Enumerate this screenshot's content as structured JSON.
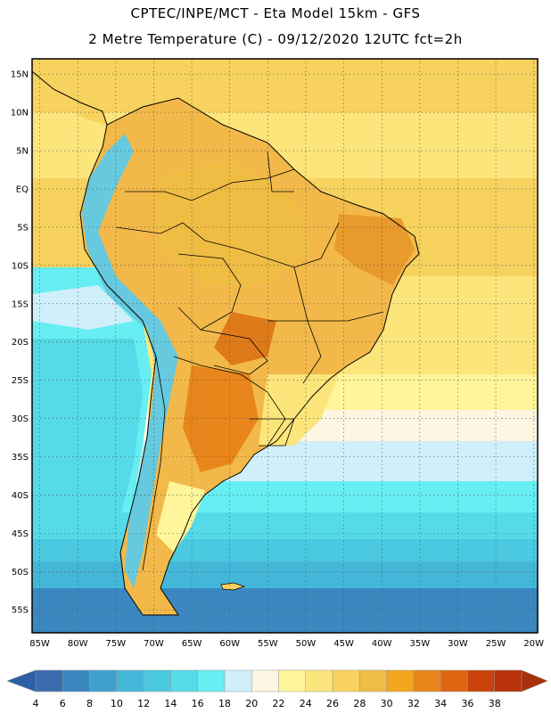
{
  "header": {
    "line1": "CPTEC/INPE/MCT -  Eta Model 15km - GFS",
    "line2": "2 Metre Temperature (C) - 09/12/2020 12UTC fct=2h"
  },
  "axes": {
    "lat_labels": [
      "15N",
      "10N",
      "5N",
      "EQ",
      "5S",
      "10S",
      "15S",
      "20S",
      "25S",
      "30S",
      "35S",
      "40S",
      "45S",
      "50S",
      "55S"
    ],
    "lat_values": [
      15,
      10,
      5,
      0,
      -5,
      -10,
      -15,
      -20,
      -25,
      -30,
      -35,
      -40,
      -45,
      -50,
      -55
    ],
    "lon_labels": [
      "85W",
      "80W",
      "75W",
      "70W",
      "65W",
      "60W",
      "55W",
      "50W",
      "45W",
      "40W",
      "35W",
      "30W",
      "25W",
      "20W"
    ],
    "lon_values": [
      -85,
      -80,
      -75,
      -70,
      -65,
      -60,
      -55,
      -50,
      -45,
      -40,
      -35,
      -30,
      -25,
      -20
    ],
    "lon_range": [
      -86,
      -19.5
    ],
    "lat_range": [
      -58,
      17
    ]
  },
  "colorbar": {
    "labels": [
      "4",
      "6",
      "8",
      "10",
      "12",
      "14",
      "16",
      "18",
      "20",
      "22",
      "24",
      "26",
      "28",
      "30",
      "32",
      "34",
      "36",
      "38"
    ],
    "colors": [
      "#3a6db0",
      "#3b87c0",
      "#3fa0cf",
      "#44b7d9",
      "#4bc9e0",
      "#55dbe8",
      "#66eef2",
      "#cfeffa",
      "#fdf6e3",
      "#fff59a",
      "#fce57a",
      "#f7d25e",
      "#efbd44",
      "#f2a71c",
      "#e8861b",
      "#de6612",
      "#c9430b",
      "#b8320a"
    ],
    "low_arrow": "#2d5fa6",
    "high_arrow": "#a8300a"
  }
}
